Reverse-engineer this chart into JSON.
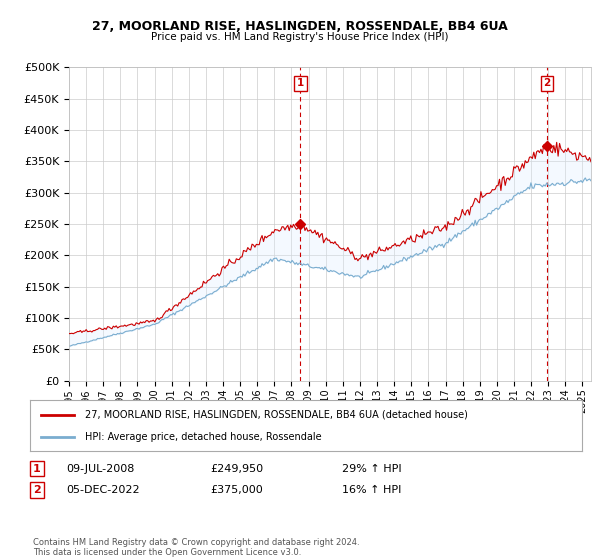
{
  "title1": "27, MOORLAND RISE, HASLINGDEN, ROSSENDALE, BB4 6UA",
  "title2": "Price paid vs. HM Land Registry's House Price Index (HPI)",
  "ylabel_values": [
    "£0",
    "£50K",
    "£100K",
    "£150K",
    "£200K",
    "£250K",
    "£300K",
    "£350K",
    "£400K",
    "£450K",
    "£500K"
  ],
  "yticks": [
    0,
    50000,
    100000,
    150000,
    200000,
    250000,
    300000,
    350000,
    400000,
    450000,
    500000
  ],
  "ylim": [
    0,
    500000
  ],
  "xlim_start": 1995.0,
  "xlim_end": 2025.5,
  "sale1_date": 2008.52,
  "sale1_price": 249950,
  "sale1_label": "1",
  "sale2_date": 2022.92,
  "sale2_price": 375000,
  "sale2_label": "2",
  "annotation1_date": "09-JUL-2008",
  "annotation1_price": "£249,950",
  "annotation1_hpi": "29% ↑ HPI",
  "annotation2_date": "05-DEC-2022",
  "annotation2_price": "£375,000",
  "annotation2_hpi": "16% ↑ HPI",
  "legend_line1": "27, MOORLAND RISE, HASLINGDEN, ROSSENDALE, BB4 6UA (detached house)",
  "legend_line2": "HPI: Average price, detached house, Rossendale",
  "footer": "Contains HM Land Registry data © Crown copyright and database right 2024.\nThis data is licensed under the Open Government Licence v3.0.",
  "red_color": "#cc0000",
  "blue_color": "#7aadcf",
  "fill_color": "#ddeeff",
  "background_color": "#ffffff",
  "grid_color": "#cccccc"
}
